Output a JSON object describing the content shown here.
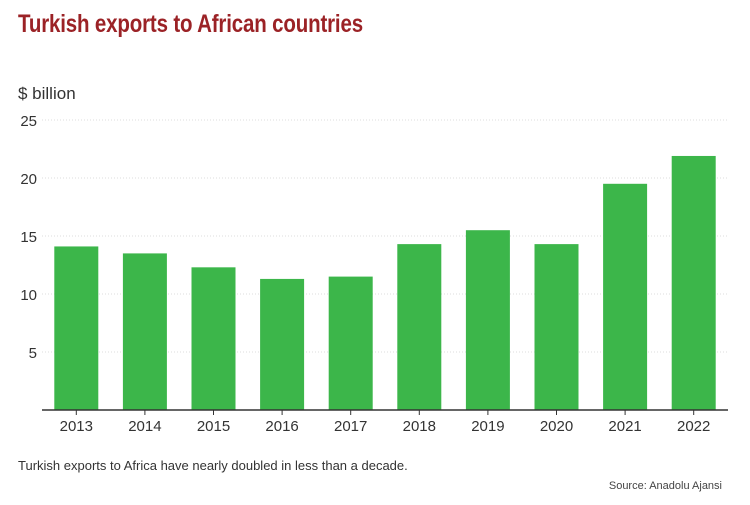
{
  "title": "Turkish exports to African countries",
  "unit_label": "$ billion",
  "caption": "Turkish exports to Africa have nearly doubled in less than a decade.",
  "source": "Source: Anadolu Ajansi",
  "colors": {
    "bar": "#3cb64a",
    "title": "#9b2226",
    "grid": "#dddddd",
    "axis": "#333333"
  },
  "chart_data": {
    "type": "bar",
    "title": "Turkish exports to African countries",
    "xlabel": "",
    "ylabel": "$ billion",
    "categories": [
      "2013",
      "2014",
      "2015",
      "2016",
      "2017",
      "2018",
      "2019",
      "2020",
      "2021",
      "2022"
    ],
    "values": [
      14.1,
      13.5,
      12.3,
      11.3,
      11.5,
      14.3,
      15.5,
      14.3,
      19.5,
      21.9
    ],
    "ylim": [
      0,
      25
    ],
    "yticks": [
      5,
      10,
      15,
      20,
      25
    ],
    "grid": true
  }
}
